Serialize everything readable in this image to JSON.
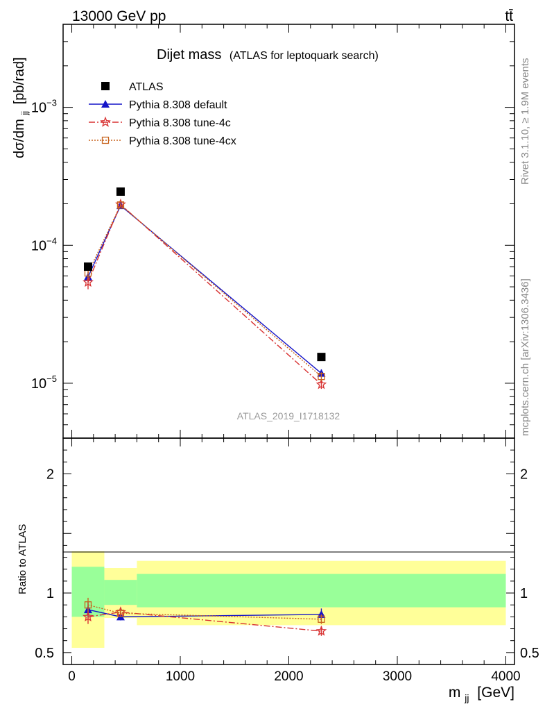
{
  "header": {
    "energy_label": "13000 GeV pp",
    "process_label": "tt̄"
  },
  "side_text": {
    "rivet": "Rivet 3.1.10, ≥ 1.9M events",
    "source": "mcplots.cern.ch [arXiv:1306.3436]"
  },
  "chart_data": {
    "type": "scatter",
    "title": "Dijet mass",
    "subtitle": "(ATLAS for leptoquark search)",
    "analysis_id": "ATLAS_2019_I1718132",
    "xlabel": "m",
    "xlabel_sub": "jj",
    "xlabel_unit": "[GeV]",
    "ylabel": "dσ/dm",
    "ylabel_sub": "jj",
    "ylabel_unit": "[pb/rad]",
    "ratio_ylabel": "Ratio to ATLAS",
    "xlim": [
      -80,
      4080
    ],
    "ylim": [
      4e-06,
      0.004
    ],
    "yscale": "log",
    "ratio_ylim": [
      0.4,
      2.3
    ],
    "x_ticks": [
      0,
      1000,
      2000,
      3000,
      4000
    ],
    "x_tick_labels": [
      "0",
      "1000",
      "2000",
      "3000",
      "4000"
    ],
    "y_ticks_main": [
      {
        "base": "10",
        "exp": "−3",
        "value": 0.001
      },
      {
        "base": "10",
        "exp": "−4",
        "value": 0.0001
      },
      {
        "base": "10",
        "exp": "−5",
        "value": 1e-05
      }
    ],
    "ratio_ticks": [
      {
        "label": "2",
        "value": 2
      },
      {
        "label": "1",
        "value": 1
      },
      {
        "label": "0.5",
        "value": 0.5
      }
    ],
    "legend_position": "top-left",
    "bins": [
      {
        "lo": 0,
        "hi": 300,
        "x": 150,
        "yellow": [
          0.54,
          1.35
        ],
        "green": [
          0.8,
          1.22
        ]
      },
      {
        "lo": 300,
        "hi": 600,
        "x": 450,
        "yellow": [
          0.79,
          1.21
        ],
        "green": [
          0.9,
          1.11
        ]
      },
      {
        "lo": 600,
        "hi": 4000,
        "x": 2300,
        "yellow": [
          0.73,
          1.27
        ],
        "green": [
          0.88,
          1.16
        ]
      }
    ],
    "series": [
      {
        "name": "ATLAS",
        "marker": "square",
        "color": "#000000",
        "x": [
          150,
          450,
          2300
        ],
        "y": [
          7e-05,
          0.000245,
          1.55e-05
        ]
      },
      {
        "name": "Pythia 8.308 default",
        "marker": "triangle",
        "color": "#1515c8",
        "dash": "",
        "x": [
          150,
          450,
          2300
        ],
        "y": [
          5.9e-05,
          0.000194,
          1.18e-05
        ],
        "yerr": [
          5e-06,
          5e-06,
          8e-07
        ],
        "ratio": [
          0.86,
          0.8,
          0.82
        ],
        "ratio_err": [
          0.07,
          0.03,
          0.05
        ]
      },
      {
        "name": "Pythia 8.308 tune-4c",
        "marker": "star",
        "color": "#d83232",
        "dash": "9 3 2 3",
        "x": [
          150,
          450,
          2300
        ],
        "y": [
          5.4e-05,
          0.000198,
          9.8e-06
        ],
        "yerr": [
          6e-06,
          5e-06,
          7e-07
        ],
        "ratio": [
          0.8,
          0.84,
          0.68
        ],
        "ratio_err": [
          0.06,
          0.03,
          0.04
        ]
      },
      {
        "name": "Pythia 8.308 tune-4cx",
        "marker": "open-square",
        "color": "#c8641e",
        "dash": "2 2",
        "x": [
          150,
          450,
          2300
        ],
        "y": [
          6.3e-05,
          0.000196,
          1.12e-05
        ],
        "yerr": [
          6e-06,
          5e-06,
          8e-07
        ],
        "ratio": [
          0.9,
          0.83,
          0.78
        ],
        "ratio_err": [
          0.06,
          0.03,
          0.04
        ]
      }
    ],
    "band_colors": {
      "yellow": "#ffff99",
      "green": "#99ff99"
    }
  }
}
